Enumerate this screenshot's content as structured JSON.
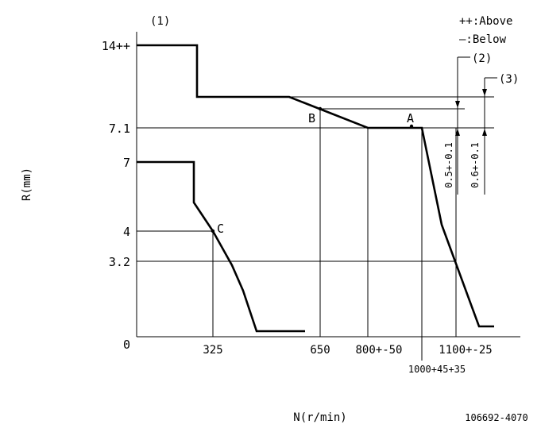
{
  "header": {
    "mark_1": "(1)",
    "legend_above": "++:Above",
    "legend_below": "—:Below"
  },
  "axes": {
    "y_label": "R(mm)",
    "x_label": "N(r/min)",
    "x_ticks": [
      "325",
      "650",
      "800+-50",
      "1100+-25"
    ],
    "x_tick_extra": "1000+45+35",
    "y_ticks": [
      "14++",
      "7.1",
      "7",
      "4",
      "3.2",
      "0"
    ]
  },
  "points": {
    "a": "A",
    "b": "B",
    "c": "C"
  },
  "marks": {
    "m2": "(2)",
    "m3": "(3)"
  },
  "dims": {
    "d1": "0.5+-0.1",
    "d2": "0.6+-0.1"
  },
  "footer": {
    "code": "106692-4070"
  },
  "colors": {
    "line": "#000000",
    "background": "#ffffff"
  }
}
